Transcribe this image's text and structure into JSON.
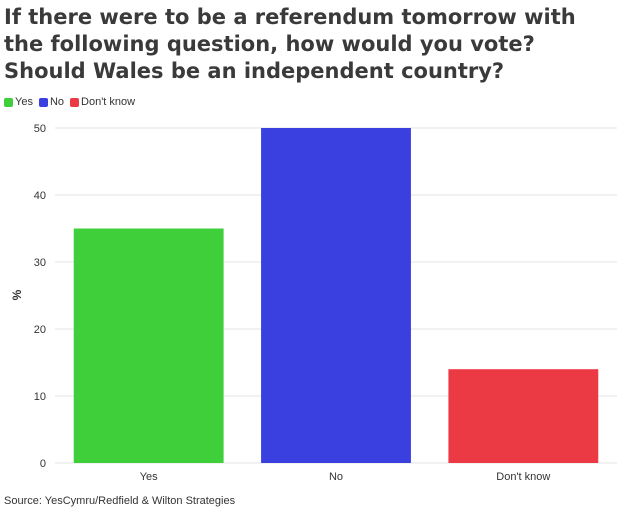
{
  "title": "If there were to be a referendum tomorrow with the following question, how would you vote? Should Wales be an independent country?",
  "source": "Source: YesCymru/Redfield & Wilton Strategies",
  "chart_data": {
    "type": "bar",
    "categories": [
      "Yes",
      "No",
      "Don't know"
    ],
    "values": [
      35,
      50,
      14
    ],
    "colors": [
      "#3ecf3a",
      "#3a3fe0",
      "#ec3a44"
    ],
    "legend": [
      "Yes",
      "No",
      "Don't know"
    ],
    "legend_position": "top-left",
    "xlabel": "",
    "ylabel": "%",
    "ylim": [
      0,
      50
    ],
    "yticks": [
      0,
      10,
      20,
      30,
      40,
      50
    ],
    "grid": true
  }
}
